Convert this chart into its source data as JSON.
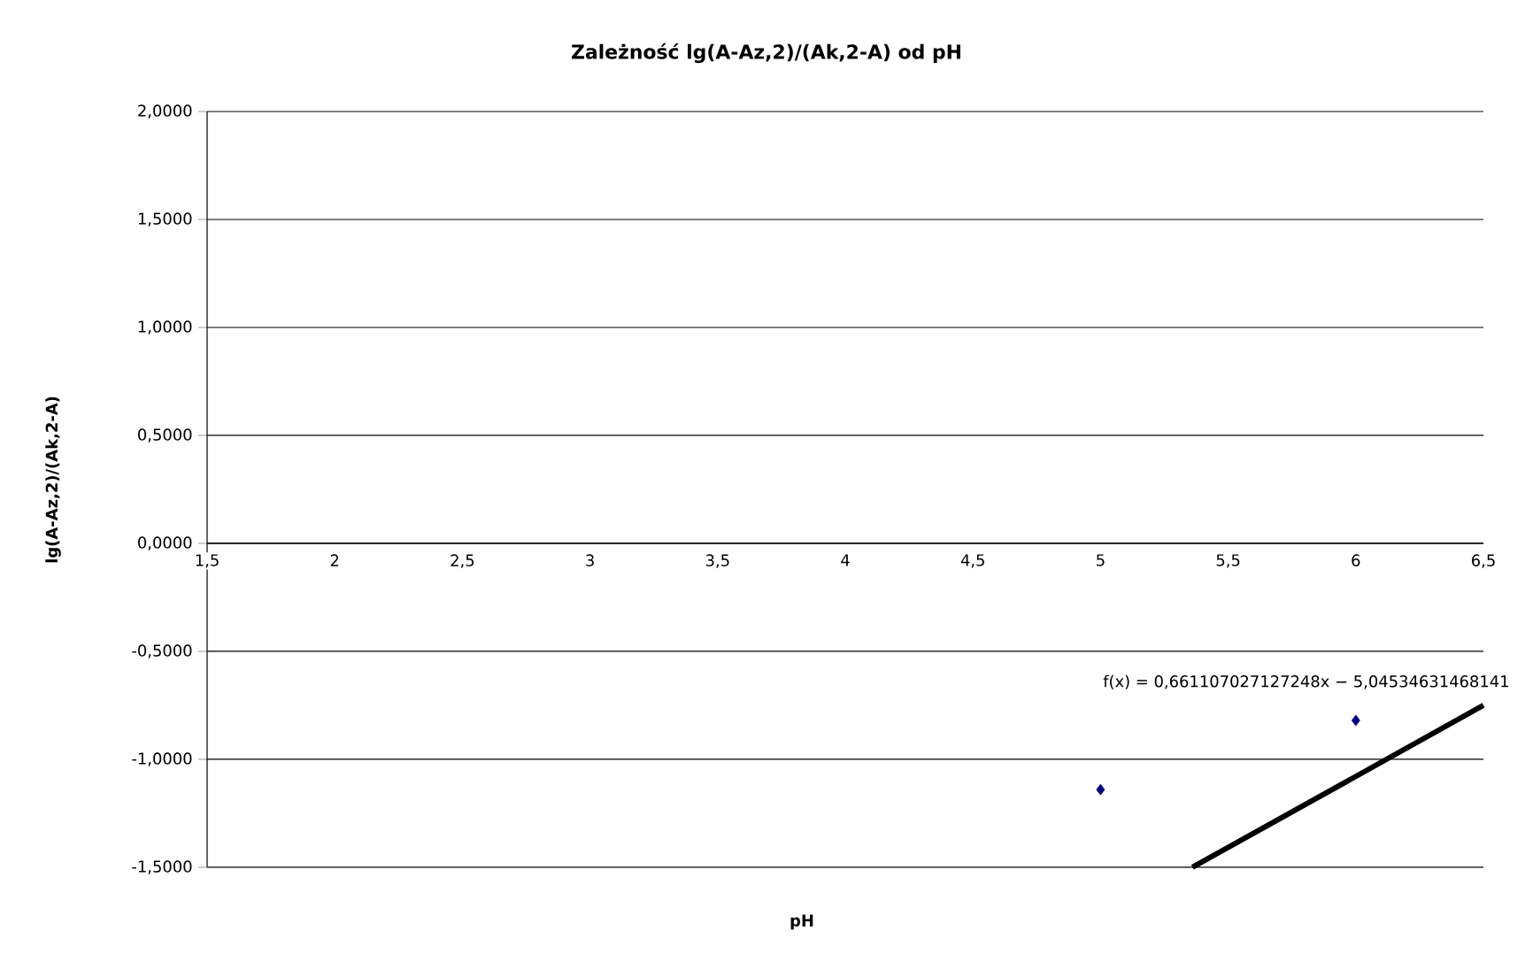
{
  "chart_data": {
    "type": "scatter",
    "title": "Zależność lg(A-Az,2)/(Ak,2-A) od pH",
    "xlabel": "pH",
    "ylabel": "lg(A-Az,2)/(Ak,2-A)",
    "xlim": [
      1.5,
      6.5
    ],
    "ylim": [
      -1.5,
      2
    ],
    "xticks": [
      {
        "value": 1.5,
        "label": "1,5"
      },
      2,
      {
        "value": 2.5,
        "label": "2,5"
      },
      3,
      {
        "value": 3.5,
        "label": "3,5"
      },
      4,
      {
        "value": 4.5,
        "label": "4,5"
      },
      5,
      {
        "value": 5.5,
        "label": "5,5"
      },
      6,
      {
        "value": 6.5,
        "label": "6,5"
      }
    ],
    "yticks": [
      {
        "value": -1.5,
        "label": "-1,5000"
      },
      {
        "value": -1,
        "label": "-1,0000"
      },
      {
        "value": -0.5,
        "label": "-0,5000"
      },
      {
        "value": 0,
        "label": "0,0000"
      },
      {
        "value": 0.5,
        "label": "0,5000"
      },
      {
        "value": 1,
        "label": "1,0000"
      },
      {
        "value": 1.5,
        "label": "1,5000"
      },
      {
        "value": 2,
        "label": "2,0000"
      }
    ],
    "grid": "y",
    "marker": "diamond",
    "series": [
      {
        "color": "#000080",
        "x": [
          5,
          6
        ],
        "values": [
          -1.14,
          -0.82
        ]
      },
      {
        "type": "line",
        "color": "#000000",
        "x": [
          5.36,
          6.5
        ],
        "values": [
          -1.5,
          -0.75
        ],
        "marker": "none"
      }
    ],
    "annotations": [
      "f(x) = 0,661107027127248x − 5,04534631468141"
    ]
  }
}
